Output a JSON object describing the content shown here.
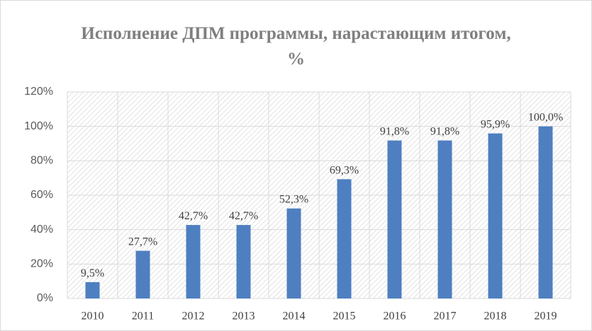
{
  "chart_data": {
    "type": "bar",
    "title": "Исполнение ДПМ программы, нарастающим итогом, %",
    "categories": [
      "2010",
      "2011",
      "2012",
      "2013",
      "2014",
      "2015",
      "2016",
      "2017",
      "2018",
      "2019"
    ],
    "values": [
      9.5,
      27.7,
      42.7,
      42.7,
      52.3,
      69.3,
      91.8,
      91.8,
      95.9,
      100.0
    ],
    "value_labels": [
      "9,5%",
      "27,7%",
      "42,7%",
      "42,7%",
      "52,3%",
      "69,3%",
      "91,8%",
      "91,8%",
      "95,9%",
      "100,0%"
    ],
    "color": "#4e7fc0",
    "ylim": [
      0,
      120
    ],
    "yticks": [
      {
        "value": 0,
        "label": "0%"
      },
      {
        "value": 20,
        "label": "20%"
      },
      {
        "value": 40,
        "label": "40%"
      },
      {
        "value": 60,
        "label": "60%"
      },
      {
        "value": 80,
        "label": "80%"
      },
      {
        "value": 100,
        "label": "100%"
      },
      {
        "value": 120,
        "label": "120%"
      }
    ],
    "grid": true
  }
}
